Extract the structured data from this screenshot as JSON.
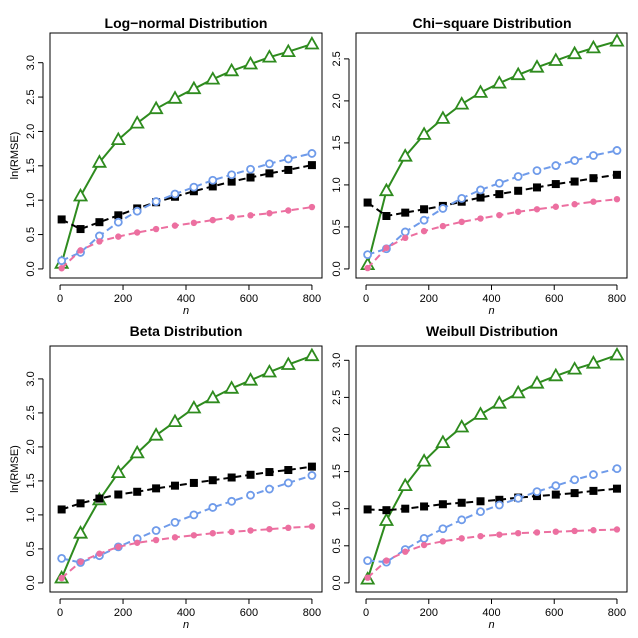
{
  "colors": {
    "series_green": "#2e8b1e",
    "series_black": "#000000",
    "series_blue": "#6f9bea",
    "series_pink": "#ec6fa0"
  },
  "chart_data": [
    {
      "type": "line",
      "title": "Log−normal Distribution",
      "xlabel": "n",
      "ylabel": "ln(RMSE)",
      "xlim": [
        0,
        800
      ],
      "ylim": [
        0,
        3.3
      ],
      "xticks": [
        0,
        200,
        400,
        600,
        800
      ],
      "yticks": [
        "0.0",
        "0.5",
        "1.0",
        "1.5",
        "2.0",
        "2.5",
        "3.0"
      ],
      "x": [
        5,
        65,
        125,
        185,
        245,
        305,
        365,
        425,
        485,
        545,
        605,
        665,
        725,
        800
      ],
      "series": [
        {
          "color": "series_green",
          "marker": "triangle",
          "dash": "solid",
          "values": [
            0.08,
            1.06,
            1.55,
            1.88,
            2.12,
            2.33,
            2.48,
            2.62,
            2.76,
            2.88,
            2.98,
            3.08,
            3.16,
            3.27
          ]
        },
        {
          "color": "series_black",
          "marker": "square",
          "dash": "dashed",
          "values": [
            0.72,
            0.58,
            0.68,
            0.78,
            0.88,
            0.97,
            1.05,
            1.13,
            1.2,
            1.27,
            1.33,
            1.39,
            1.44,
            1.51
          ]
        },
        {
          "color": "series_blue",
          "marker": "circle-open",
          "dash": "dashed",
          "values": [
            0.12,
            0.24,
            0.48,
            0.68,
            0.84,
            0.98,
            1.09,
            1.19,
            1.29,
            1.37,
            1.45,
            1.53,
            1.6,
            1.68
          ]
        },
        {
          "color": "series_pink",
          "marker": "circle-filled",
          "dash": "dashed",
          "values": [
            0.01,
            0.27,
            0.4,
            0.47,
            0.53,
            0.58,
            0.63,
            0.67,
            0.71,
            0.75,
            0.78,
            0.81,
            0.85,
            0.9
          ]
        }
      ]
    },
    {
      "type": "line",
      "title": "Chi−square Distribution",
      "xlabel": "n",
      "ylabel": "",
      "xlim": [
        0,
        800
      ],
      "ylim": [
        0,
        2.7
      ],
      "xticks": [
        0,
        200,
        400,
        600,
        800
      ],
      "yticks": [
        "0.0",
        "0.5",
        "1.0",
        "1.5",
        "2.0",
        "2.5"
      ],
      "x": [
        5,
        65,
        125,
        185,
        245,
        305,
        365,
        425,
        485,
        545,
        605,
        665,
        725,
        800
      ],
      "series": [
        {
          "color": "series_green",
          "marker": "triangle",
          "dash": "solid",
          "values": [
            0.05,
            0.93,
            1.34,
            1.6,
            1.79,
            1.96,
            2.1,
            2.21,
            2.31,
            2.4,
            2.48,
            2.56,
            2.63,
            2.71
          ]
        },
        {
          "color": "series_black",
          "marker": "square",
          "dash": "dashed",
          "values": [
            0.79,
            0.63,
            0.67,
            0.71,
            0.75,
            0.8,
            0.85,
            0.89,
            0.93,
            0.97,
            1.01,
            1.04,
            1.08,
            1.12
          ]
        },
        {
          "color": "series_blue",
          "marker": "circle-open",
          "dash": "dashed",
          "values": [
            0.17,
            0.24,
            0.44,
            0.58,
            0.72,
            0.84,
            0.94,
            1.02,
            1.1,
            1.17,
            1.23,
            1.29,
            1.35,
            1.41
          ]
        },
        {
          "color": "series_pink",
          "marker": "circle-filled",
          "dash": "dashed",
          "values": [
            0.01,
            0.25,
            0.37,
            0.45,
            0.51,
            0.56,
            0.6,
            0.64,
            0.68,
            0.71,
            0.74,
            0.77,
            0.8,
            0.83
          ]
        }
      ]
    },
    {
      "type": "line",
      "title": "Beta Distribution",
      "xlabel": "n",
      "ylabel": "ln(RMSE)",
      "xlim": [
        0,
        800
      ],
      "ylim": [
        0,
        3.35
      ],
      "xticks": [
        0,
        200,
        400,
        600,
        800
      ],
      "yticks": [
        "0.0",
        "0.5",
        "1.0",
        "1.5",
        "2.0",
        "2.5",
        "3.0"
      ],
      "x": [
        5,
        65,
        125,
        185,
        245,
        305,
        365,
        425,
        485,
        545,
        605,
        665,
        725,
        800
      ],
      "series": [
        {
          "color": "series_green",
          "marker": "triangle",
          "dash": "solid",
          "values": [
            0.07,
            0.73,
            1.22,
            1.62,
            1.91,
            2.17,
            2.37,
            2.57,
            2.72,
            2.86,
            2.98,
            3.1,
            3.21,
            3.34
          ]
        },
        {
          "color": "series_black",
          "marker": "square",
          "dash": "dashed",
          "values": [
            1.08,
            1.17,
            1.24,
            1.3,
            1.34,
            1.39,
            1.43,
            1.47,
            1.51,
            1.55,
            1.59,
            1.63,
            1.66,
            1.71
          ]
        },
        {
          "color": "series_blue",
          "marker": "circle-open",
          "dash": "dashed",
          "values": [
            0.36,
            0.3,
            0.4,
            0.53,
            0.65,
            0.77,
            0.89,
            1.0,
            1.11,
            1.2,
            1.29,
            1.38,
            1.47,
            1.58
          ]
        },
        {
          "color": "series_pink",
          "marker": "circle-filled",
          "dash": "dashed",
          "values": [
            0.07,
            0.31,
            0.43,
            0.53,
            0.59,
            0.63,
            0.67,
            0.7,
            0.73,
            0.75,
            0.77,
            0.79,
            0.81,
            0.83
          ]
        }
      ]
    },
    {
      "type": "line",
      "title": "Weibull Distribution",
      "xlabel": "n",
      "ylabel": "",
      "xlim": [
        0,
        800
      ],
      "ylim": [
        0,
        3.07
      ],
      "xticks": [
        0,
        200,
        400,
        600,
        800
      ],
      "yticks": [
        "0.0",
        "0.5",
        "1.0",
        "1.5",
        "2.0",
        "2.5",
        "3.0"
      ],
      "x": [
        5,
        65,
        125,
        185,
        245,
        305,
        365,
        425,
        485,
        545,
        605,
        665,
        725,
        800
      ],
      "series": [
        {
          "color": "series_green",
          "marker": "triangle",
          "dash": "solid",
          "values": [
            0.05,
            0.84,
            1.31,
            1.64,
            1.89,
            2.1,
            2.27,
            2.42,
            2.56,
            2.69,
            2.79,
            2.88,
            2.96,
            3.07
          ]
        },
        {
          "color": "series_black",
          "marker": "square",
          "dash": "dashed",
          "values": [
            0.99,
            0.98,
            1.0,
            1.03,
            1.06,
            1.08,
            1.1,
            1.12,
            1.15,
            1.17,
            1.19,
            1.21,
            1.24,
            1.27
          ]
        },
        {
          "color": "series_blue",
          "marker": "circle-open",
          "dash": "dashed",
          "values": [
            0.3,
            0.28,
            0.45,
            0.6,
            0.73,
            0.85,
            0.96,
            1.05,
            1.14,
            1.23,
            1.31,
            1.39,
            1.46,
            1.54
          ]
        },
        {
          "color": "series_pink",
          "marker": "circle-filled",
          "dash": "dashed",
          "values": [
            0.07,
            0.3,
            0.42,
            0.51,
            0.56,
            0.6,
            0.63,
            0.65,
            0.67,
            0.68,
            0.69,
            0.7,
            0.71,
            0.72
          ]
        }
      ]
    }
  ]
}
